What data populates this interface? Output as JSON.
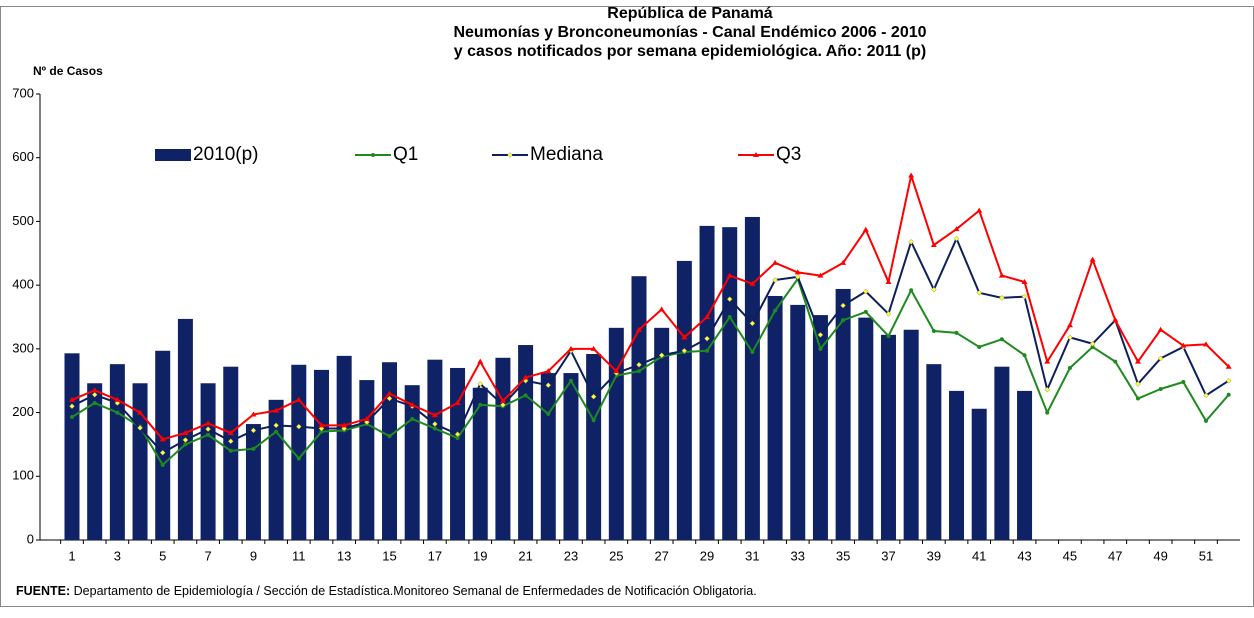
{
  "chart_data": {
    "type": "bar-line",
    "title": [
      "República de Panamá",
      "Neumonías y Bronconeumonías - Canal Endémico 2006  -  2010",
      "y casos notificados por semana epidemiológica. Año: 2011 (p)"
    ],
    "y_label": "Nº de Casos",
    "source_label": "FUENTE:",
    "source": "Departamento de Epidemiología / Sección de Estadística.Monitoreo Semanal de Enfermedades de Notificación Obligatoria.",
    "categories": [
      "1",
      null,
      "3",
      null,
      "5",
      null,
      "7",
      null,
      "9",
      null,
      "11",
      null,
      "13",
      null,
      "15",
      null,
      "17",
      null,
      "19",
      null,
      "21",
      null,
      "23",
      null,
      "25",
      null,
      "27",
      null,
      "29",
      null,
      "31",
      null,
      "33",
      null,
      "35",
      null,
      "37",
      null,
      "39",
      null,
      "41",
      null,
      "43",
      null,
      "45",
      null,
      "47",
      null,
      "49",
      null,
      "51",
      null
    ],
    "ylim": [
      0,
      700
    ],
    "yticks": [
      0,
      100,
      200,
      300,
      400,
      500,
      600,
      700
    ],
    "legend": "upper-left",
    "series": [
      {
        "name": "2010(p)",
        "type": "bar",
        "color": "#0f2266",
        "values": [
          293,
          246,
          276,
          246,
          297,
          347,
          246,
          272,
          182,
          220,
          275,
          267,
          289,
          251,
          279,
          243,
          283,
          270,
          239,
          286,
          306,
          262,
          262,
          292,
          333,
          414,
          333,
          438,
          493,
          491,
          507,
          383,
          369,
          353,
          394,
          349,
          322,
          330,
          276,
          234,
          206,
          272,
          234,
          null,
          null,
          null,
          null,
          null,
          null,
          null,
          null,
          null
        ]
      },
      {
        "name": "Q1",
        "type": "line",
        "marker": "circle",
        "color": "#1f8a1f",
        "values": [
          193,
          215,
          200,
          178,
          118,
          150,
          165,
          140,
          143,
          170,
          128,
          170,
          172,
          182,
          163,
          190,
          175,
          160,
          212,
          210,
          227,
          198,
          250,
          188,
          258,
          265,
          288,
          295,
          297,
          350,
          295,
          360,
          410,
          300,
          345,
          358,
          320,
          392,
          328,
          325,
          303,
          315,
          290,
          200,
          270,
          303,
          280,
          222,
          237,
          248,
          187,
          228
        ]
      },
      {
        "name": "Mediana",
        "type": "line",
        "marker": "diamond",
        "color": "#0d1f5c",
        "values": [
          210,
          228,
          215,
          176,
          137,
          157,
          174,
          155,
          172,
          180,
          178,
          175,
          175,
          185,
          222,
          210,
          182,
          166,
          245,
          212,
          250,
          243,
          297,
          225,
          262,
          275,
          290,
          297,
          316,
          378,
          340,
          408,
          413,
          322,
          368,
          390,
          355,
          468,
          393,
          473,
          388,
          380,
          382,
          236,
          318,
          308,
          345,
          245,
          285,
          303,
          227,
          250
        ]
      },
      {
        "name": "Q3",
        "type": "line",
        "marker": "triangle",
        "color": "#ff0000",
        "values": [
          220,
          235,
          220,
          200,
          158,
          168,
          183,
          168,
          197,
          203,
          220,
          180,
          180,
          190,
          230,
          212,
          196,
          215,
          280,
          218,
          255,
          265,
          300,
          300,
          265,
          330,
          362,
          318,
          350,
          415,
          402,
          435,
          420,
          415,
          435,
          487,
          405,
          572,
          463,
          488,
          517,
          415,
          405,
          280,
          337,
          440,
          345,
          280,
          330,
          305,
          307,
          272
        ]
      }
    ]
  }
}
